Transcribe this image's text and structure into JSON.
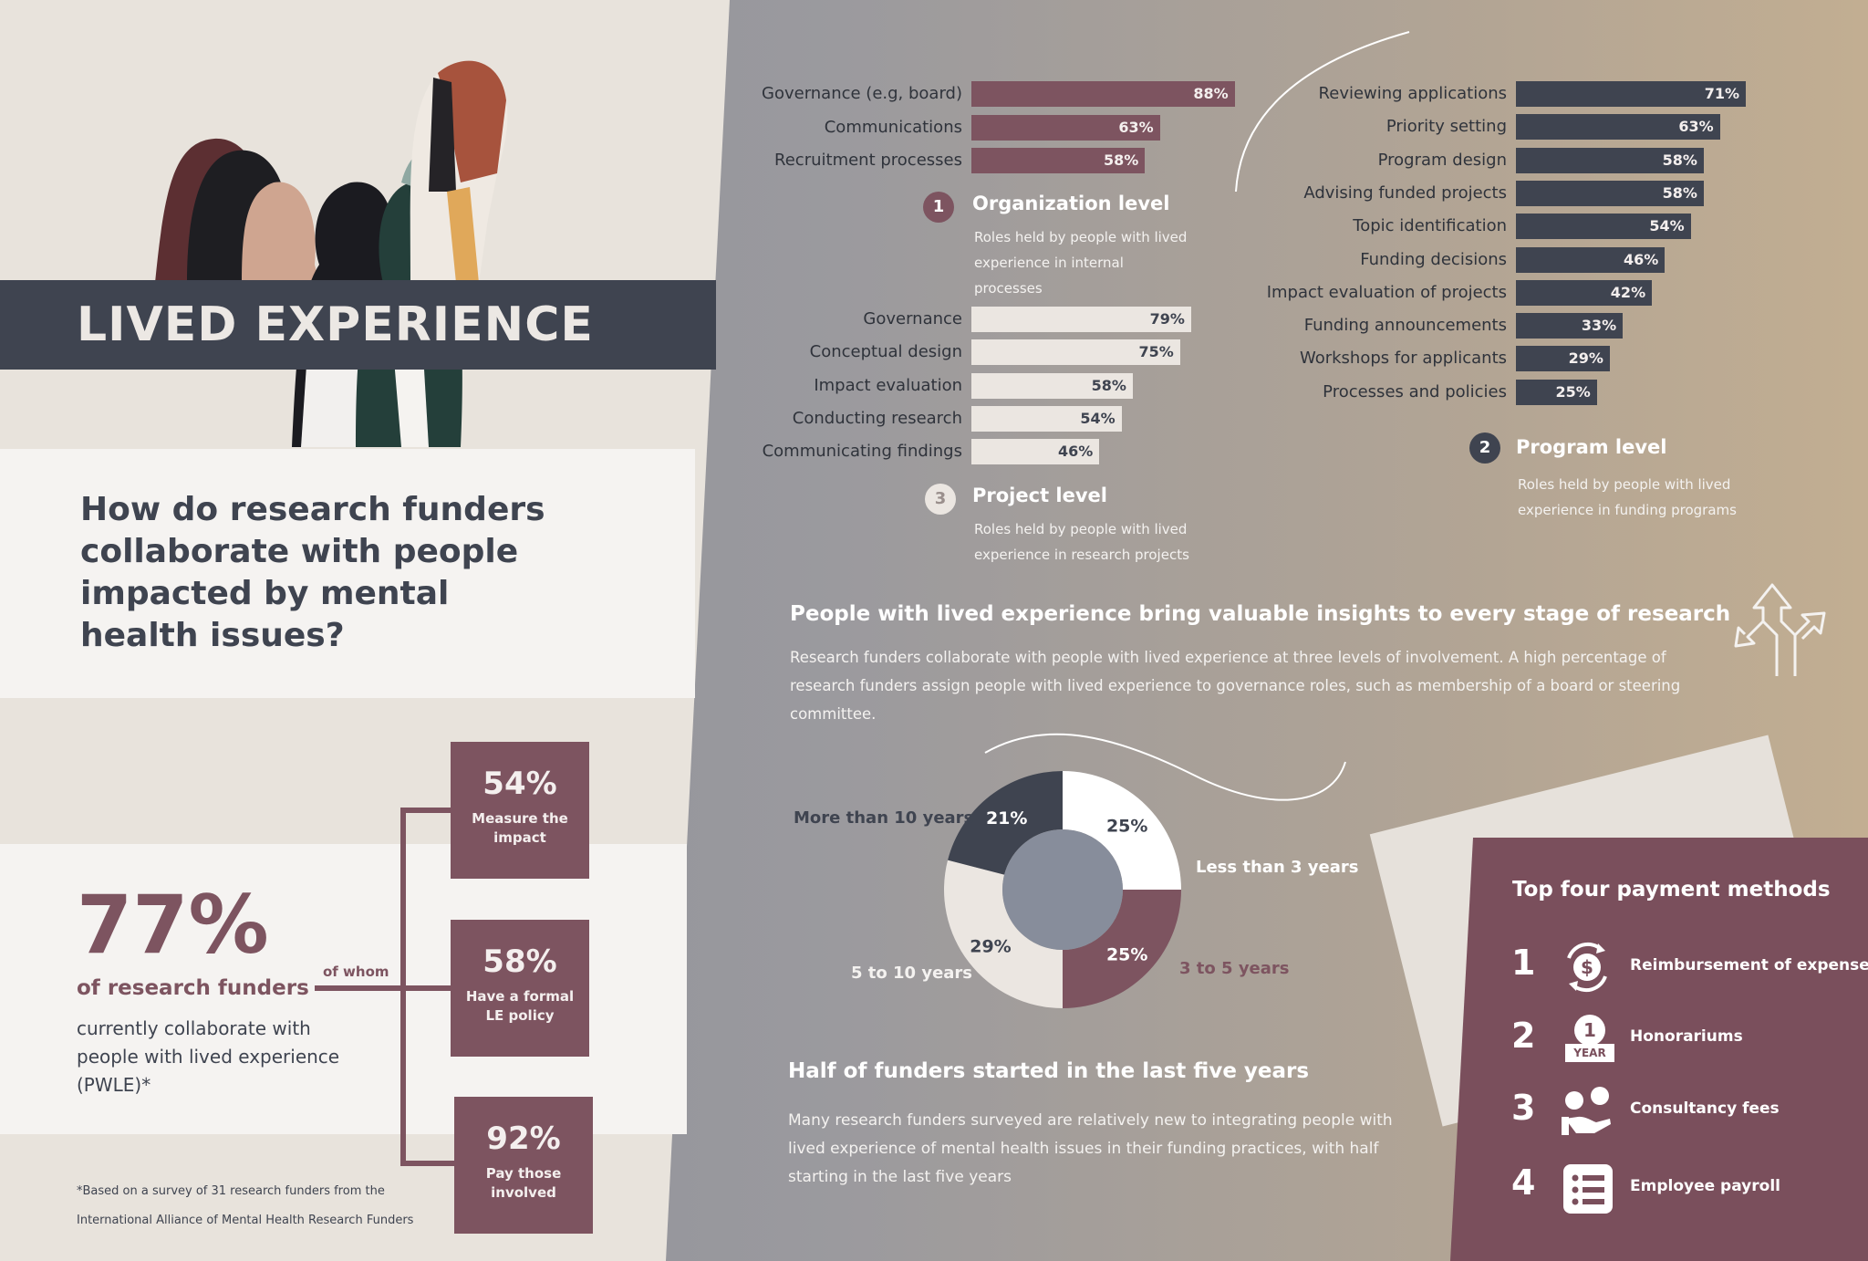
{
  "header": {
    "title": "LIVED EXPERIENCE",
    "question": "How do research funders collaborate with people impacted by mental health issues?"
  },
  "summary": {
    "big_pct": "77%",
    "of_funders": "of research funders",
    "collab_text": "currently collaborate with people with lived experience (PWLE)*",
    "of_whom": "of whom",
    "stats": [
      {
        "pct": "54%",
        "label": "Measure the impact"
      },
      {
        "pct": "58%",
        "label": "Have a formal LE policy"
      },
      {
        "pct": "92%",
        "label": "Pay those involved"
      }
    ],
    "footnote": "*Based on a survey of 31 research funders from the International Alliance of Mental Health Research Funders"
  },
  "levels": {
    "org": {
      "num": "1",
      "title": "Organization level",
      "desc": "Roles held by people with lived experience in internal processes"
    },
    "program": {
      "num": "2",
      "title": "Program level",
      "desc": "Roles held by people with lived experience in funding programs"
    },
    "project": {
      "num": "3",
      "title": "Project level",
      "desc": "Roles held by people with lived experience in research projects"
    }
  },
  "insight": {
    "title": "People with lived experience bring valuable insights to every stage of research",
    "text": "Research funders collaborate with people with lived experience at three levels of involvement. A high percentage of research funders assign people with lived experience to governance roles, such as membership of a board or steering committee."
  },
  "half": {
    "title": "Half of funders started in the last five years",
    "text": "Many research funders surveyed are relatively new to integrating people with lived experience of mental health issues in their funding practices, with half starting in the last five years"
  },
  "payment": {
    "title": "Top four payment methods",
    "items": [
      {
        "num": "1",
        "label": "Reimbursement of expenses",
        "icon": "reimbursement-icon"
      },
      {
        "num": "2",
        "label": "Honorariums",
        "icon": "calendar-year-icon",
        "badge_num": "1",
        "badge_text": "YEAR"
      },
      {
        "num": "3",
        "label": "Consultancy fees",
        "icon": "consultancy-icon"
      },
      {
        "num": "4",
        "label": "Employee payroll",
        "icon": "payroll-list-icon"
      }
    ]
  },
  "colors": {
    "maroon": "#7d5460",
    "dark": "#3f4450",
    "light": "#ebe6e1",
    "white": "#ffffff"
  },
  "chart_data": [
    {
      "type": "bar",
      "orientation": "horizontal",
      "title": "Organization level",
      "categories": [
        "Governance (e.g, board)",
        "Communications",
        "Recruitment processes"
      ],
      "values": [
        88,
        63,
        58
      ],
      "value_labels": [
        "88%",
        "63%",
        "58%"
      ],
      "unit": "%",
      "xlim": [
        0,
        100
      ]
    },
    {
      "type": "bar",
      "orientation": "horizontal",
      "title": "Program level",
      "categories": [
        "Reviewing applications",
        "Priority setting",
        "Program design",
        "Advising funded projects",
        "Topic identification",
        "Funding decisions",
        "Impact evaluation of projects",
        "Funding announcements",
        "Workshops for applicants",
        "Processes and policies"
      ],
      "values": [
        71,
        63,
        58,
        58,
        54,
        46,
        42,
        33,
        29,
        25
      ],
      "value_labels": [
        "71%",
        "63%",
        "58%",
        "58%",
        "54%",
        "46%",
        "42%",
        "33%",
        "29%",
        "25%"
      ],
      "unit": "%",
      "xlim": [
        0,
        100
      ]
    },
    {
      "type": "bar",
      "orientation": "horizontal",
      "title": "Project level",
      "categories": [
        "Governance",
        "Conceptual design",
        "Impact evaluation",
        "Conducting research",
        "Communicating findings"
      ],
      "values": [
        79,
        75,
        58,
        54,
        46
      ],
      "value_labels": [
        "79%",
        "75%",
        "58%",
        "54%",
        "46%"
      ],
      "unit": "%",
      "xlim": [
        0,
        100
      ]
    },
    {
      "type": "pie",
      "subtype": "donut",
      "title": "Half of funders started in the last five years",
      "categories": [
        "Less than 3 years",
        "3 to 5 years",
        "5 to 10 years",
        "More than 10 years"
      ],
      "values": [
        25,
        25,
        29,
        21
      ],
      "value_labels": [
        "25%",
        "25%",
        "29%",
        "21%"
      ],
      "colors": [
        "#ffffff",
        "#7d5460",
        "#ebe6e1",
        "#3f4450"
      ]
    }
  ]
}
